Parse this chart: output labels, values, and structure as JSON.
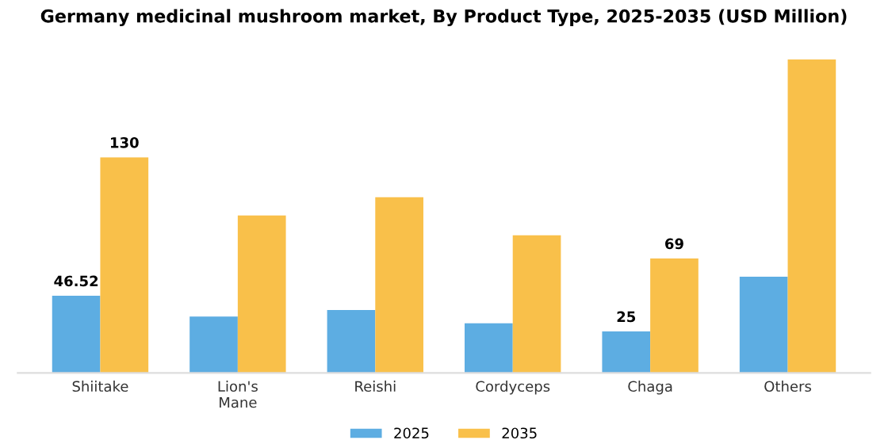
{
  "chart_data": {
    "type": "bar",
    "title": "Germany medicinal mushroom market, By Product Type, 2025-2035 (USD Million)",
    "categories": [
      "Shiitake",
      "Lion's\nMane",
      "Reishi",
      "Cordyceps",
      "Chaga",
      "Others"
    ],
    "series": [
      {
        "name": "2025",
        "color": "#5dade2",
        "values": [
          46.52,
          34,
          38,
          30,
          25,
          58
        ],
        "value_labels": [
          "46.52",
          null,
          null,
          null,
          "25",
          null
        ]
      },
      {
        "name": "2035",
        "color": "#f9c04a",
        "values": [
          130,
          95,
          106,
          83,
          69,
          189
        ],
        "value_labels": [
          "130",
          null,
          null,
          null,
          "69",
          null
        ]
      }
    ],
    "legend": "bottom",
    "grid": false,
    "tick_labels": "x"
  }
}
